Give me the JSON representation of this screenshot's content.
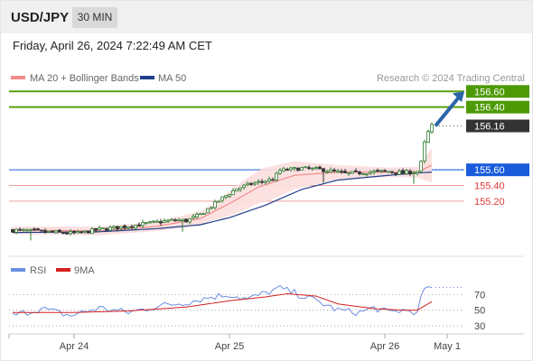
{
  "header": {
    "pair": "USD/JPY",
    "timeframe": "30 MIN",
    "timestamp": "Friday, April 26, 2024 7:22:49 AM CET"
  },
  "legend": {
    "ma20": "MA 20 + Bollinger Bands",
    "ma50": "MA 50",
    "credit": "Research © 2024 Trading Central"
  },
  "colors": {
    "bullish": "#2e7d32",
    "bearish": "#333333",
    "ma20": "#f28b8b",
    "ma50": "#1f3f8a",
    "bands": "#fcdede",
    "resistance": "#5aa00b",
    "pivot": "#1f5fd6",
    "support": "#f3a0a0",
    "arrow": "#2a65a8",
    "rsi": "#6a8de0",
    "rsi_ma": "#d42020"
  },
  "chart_data": [
    {
      "type": "candlestick",
      "title": "USD/JPY 30 MIN",
      "x_ticks": [
        "Apr 24",
        "Apr 25",
        "Apr 26",
        "May 1"
      ],
      "ylim": [
        154.52,
        156.73
      ],
      "levels": [
        {
          "value": 156.6,
          "label": "156.60",
          "kind": "resistance"
        },
        {
          "value": 156.4,
          "label": "156.40",
          "kind": "resistance"
        },
        {
          "value": 156.16,
          "label": "156.16",
          "kind": "last"
        },
        {
          "value": 155.6,
          "label": "155.60",
          "kind": "pivot"
        },
        {
          "value": 155.4,
          "label": "155.40",
          "kind": "support"
        },
        {
          "value": 155.2,
          "label": "155.20",
          "kind": "support"
        }
      ],
      "close_anchors": [
        [
          0,
          154.83
        ],
        [
          5,
          154.82
        ],
        [
          12,
          154.8
        ],
        [
          18,
          154.79
        ],
        [
          24,
          154.84
        ],
        [
          30,
          154.87
        ],
        [
          38,
          154.92
        ],
        [
          45,
          154.96
        ],
        [
          48,
          154.95
        ],
        [
          52,
          155.03
        ],
        [
          58,
          155.24
        ],
        [
          62,
          155.36
        ],
        [
          66,
          155.42
        ],
        [
          72,
          155.48
        ],
        [
          74,
          155.59
        ],
        [
          80,
          155.62
        ],
        [
          86,
          155.6
        ],
        [
          92,
          155.55
        ],
        [
          98,
          155.57
        ],
        [
          104,
          155.58
        ],
        [
          108,
          155.56
        ],
        [
          112,
          155.58
        ],
        [
          113,
          155.69
        ],
        [
          114,
          155.94
        ],
        [
          115,
          156.08
        ],
        [
          116,
          156.16
        ]
      ],
      "ma20_anchors": [
        [
          0,
          154.83
        ],
        [
          24,
          154.82
        ],
        [
          40,
          154.88
        ],
        [
          52,
          154.98
        ],
        [
          60,
          155.17
        ],
        [
          68,
          155.38
        ],
        [
          78,
          155.53
        ],
        [
          90,
          155.57
        ],
        [
          104,
          155.57
        ],
        [
          112,
          155.57
        ],
        [
          116,
          155.66
        ]
      ],
      "ma50_anchors": [
        [
          0,
          154.8
        ],
        [
          24,
          154.81
        ],
        [
          40,
          154.85
        ],
        [
          52,
          154.9
        ],
        [
          60,
          154.99
        ],
        [
          70,
          155.15
        ],
        [
          80,
          155.35
        ],
        [
          90,
          155.47
        ],
        [
          104,
          155.53
        ],
        [
          112,
          155.56
        ],
        [
          116,
          155.57
        ]
      ],
      "band_width_anchors": [
        [
          0,
          0.05
        ],
        [
          40,
          0.06
        ],
        [
          55,
          0.1
        ],
        [
          62,
          0.18
        ],
        [
          70,
          0.22
        ],
        [
          78,
          0.18
        ],
        [
          90,
          0.09
        ],
        [
          104,
          0.06
        ],
        [
          112,
          0.07
        ],
        [
          116,
          0.22
        ]
      ]
    },
    {
      "type": "line",
      "title": "RSI",
      "series": [
        {
          "name": "RSI"
        },
        {
          "name": "9MA"
        }
      ],
      "ylim": [
        22,
        90
      ],
      "y_ticks": [
        70,
        50,
        30
      ],
      "rsi_anchors": [
        [
          0,
          43
        ],
        [
          8,
          52
        ],
        [
          16,
          43
        ],
        [
          24,
          53
        ],
        [
          32,
          47
        ],
        [
          40,
          55
        ],
        [
          48,
          60
        ],
        [
          55,
          67
        ],
        [
          60,
          70
        ],
        [
          65,
          64
        ],
        [
          70,
          72
        ],
        [
          74,
          78
        ],
        [
          78,
          72
        ],
        [
          84,
          62
        ],
        [
          90,
          50
        ],
        [
          96,
          47
        ],
        [
          100,
          53
        ],
        [
          104,
          47
        ],
        [
          108,
          50
        ],
        [
          112,
          48
        ],
        [
          113,
          68
        ],
        [
          114,
          78
        ],
        [
          115,
          80
        ],
        [
          116,
          79
        ]
      ],
      "ma_anchors": [
        [
          0,
          47
        ],
        [
          16,
          47
        ],
        [
          32,
          49
        ],
        [
          48,
          54
        ],
        [
          60,
          62
        ],
        [
          70,
          67
        ],
        [
          76,
          71
        ],
        [
          84,
          68
        ],
        [
          90,
          58
        ],
        [
          100,
          52
        ],
        [
          108,
          50
        ],
        [
          112,
          50
        ],
        [
          116,
          61
        ]
      ]
    }
  ]
}
